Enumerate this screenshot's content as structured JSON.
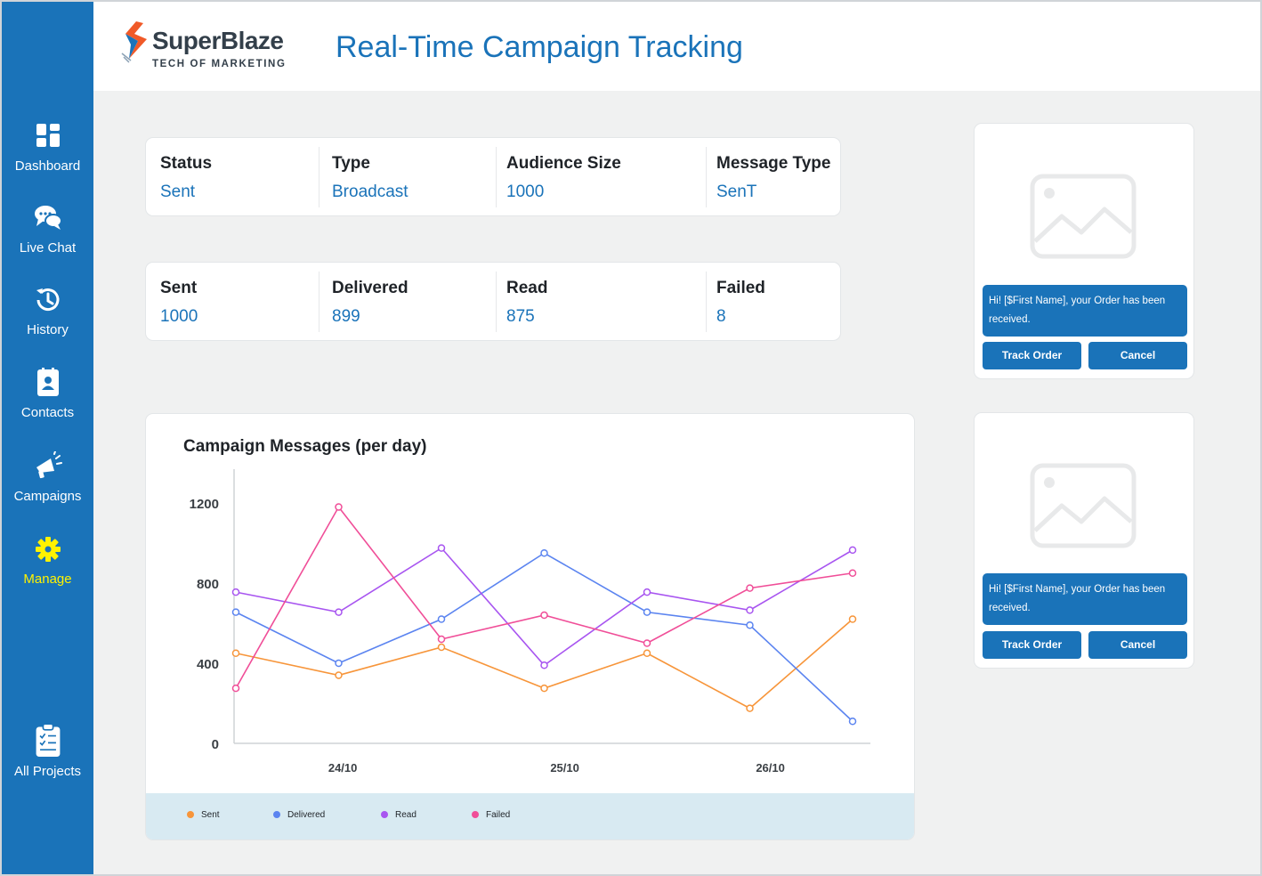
{
  "app": {
    "logo_name": "SuperBlaze",
    "logo_tagline": "TECH OF MARKETING",
    "page_title": "Real-Time Campaign Tracking"
  },
  "sidebar": {
    "items": [
      {
        "label": "Dashboard",
        "icon": "dashboard-icon"
      },
      {
        "label": "Live Chat",
        "icon": "chat-bubbles-icon"
      },
      {
        "label": "History",
        "icon": "history-clock-icon"
      },
      {
        "label": "Contacts",
        "icon": "contact-book-icon"
      },
      {
        "label": "Campaigns",
        "icon": "megaphone-icon"
      },
      {
        "label": "Manage",
        "icon": "gear-icon",
        "active": true
      },
      {
        "label": "All Projects",
        "icon": "clipboard-icon"
      }
    ],
    "active_color": "#fff200"
  },
  "campaign_info": {
    "status_label": "Status",
    "status_value": "Sent",
    "type_label": "Type",
    "type_value": "Broadcast",
    "audience_label": "Audience Size",
    "audience_value": "1000",
    "message_type_label": "Message Type",
    "message_type_value": "SenT"
  },
  "delivery_stats": {
    "sent_label": "Sent",
    "sent_value": "1000",
    "delivered_label": "Delivered",
    "delivered_value": "899",
    "read_label": "Read",
    "read_value": "875",
    "failed_label": "Failed",
    "failed_value": "8"
  },
  "chart_data": {
    "type": "line",
    "title": "Campaign Messages (per day)",
    "xlabel": "",
    "ylabel": "",
    "x_ticks": [
      "24/10",
      "25/10",
      "26/10"
    ],
    "y_ticks": [
      0,
      400,
      800,
      1200
    ],
    "ylim": [
      0,
      1400
    ],
    "grid": false,
    "legend_position": "bottom",
    "series": [
      {
        "name": "Sent",
        "color": "#f7953a",
        "values": [
          450,
          340,
          480,
          275,
          450,
          175,
          620
        ]
      },
      {
        "name": "Delivered",
        "color": "#5b84f0",
        "values": [
          655,
          400,
          620,
          950,
          655,
          590,
          110
        ]
      },
      {
        "name": "Read",
        "color": "#a855f0",
        "values": [
          755,
          655,
          975,
          390,
          755,
          665,
          965
        ]
      },
      {
        "name": "Failed",
        "color": "#f04e98",
        "values": [
          275,
          1180,
          520,
          640,
          500,
          775,
          850
        ]
      }
    ]
  },
  "previews": [
    {
      "image_icon": "image-placeholder-icon",
      "message": "Hi! [$First Name], your Order has been received.",
      "buttons": [
        "Track Order",
        "Cancel"
      ]
    },
    {
      "image_icon": "image-placeholder-icon",
      "message": "Hi! [$First Name], your Order has been received.",
      "buttons": [
        "Track Order",
        "Cancel"
      ]
    }
  ],
  "colors": {
    "brand_blue": "#1a73b9",
    "legend_bg": "#d8eaf2"
  }
}
